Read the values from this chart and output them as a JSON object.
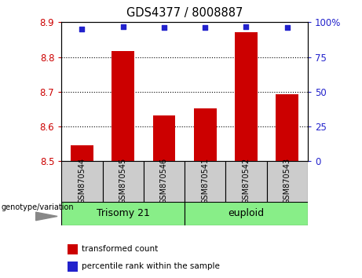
{
  "title": "GDS4377 / 8008887",
  "samples": [
    "GSM870544",
    "GSM870545",
    "GSM870546",
    "GSM870541",
    "GSM870542",
    "GSM870543"
  ],
  "bar_values": [
    8.545,
    8.818,
    8.632,
    8.652,
    8.872,
    8.693
  ],
  "percentile_values": [
    95,
    97,
    96,
    96,
    97,
    96
  ],
  "bar_color": "#cc0000",
  "percentile_color": "#2222cc",
  "ylim_left": [
    8.5,
    8.9
  ],
  "ylim_right": [
    0,
    100
  ],
  "yticks_left": [
    8.5,
    8.6,
    8.7,
    8.8,
    8.9
  ],
  "yticks_right": [
    0,
    25,
    50,
    75,
    100
  ],
  "group1_label": "Trisomy 21",
  "group2_label": "euploid",
  "group_color": "#88ee88",
  "genotype_label": "genotype/variation",
  "legend_bar_label": "transformed count",
  "legend_percentile_label": "percentile rank within the sample",
  "sample_box_color": "#cccccc",
  "plot_bg": "#ffffff",
  "figsize": [
    4.61,
    3.54
  ],
  "dpi": 100
}
